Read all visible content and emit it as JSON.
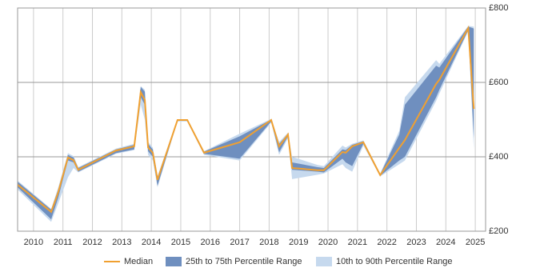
{
  "chart_data": {
    "type": "line",
    "x": [
      2009.46,
      2010.6,
      2010.84,
      2011.17,
      2011.36,
      2011.52,
      2012.8,
      2013.42,
      2013.64,
      2013.78,
      2013.89,
      2014.05,
      2014.21,
      2014.89,
      2015.22,
      2015.79,
      2017.0,
      2018.07,
      2018.34,
      2018.64,
      2018.78,
      2019.65,
      2019.86,
      2020.49,
      2020.6,
      2020.82,
      2021.2,
      2021.77,
      2022.42,
      2022.61,
      2023.67,
      2023.78,
      2024.76,
      2024.95
    ],
    "bands": [
      {
        "name": "10th to 90th Percentile Range",
        "color": "#c6d9ee",
        "lower": [
          312,
          225,
          275,
          345,
          370,
          358,
          408,
          418,
          540,
          500,
          405,
          390,
          318,
          495,
          495,
          405,
          390,
          492,
          405,
          450,
          340,
          352,
          355,
          380,
          370,
          360,
          430,
          347,
          380,
          390,
          550,
          570,
          738,
          420
        ],
        "upper": [
          336,
          260,
          318,
          410,
          402,
          372,
          422,
          435,
          590,
          580,
          440,
          425,
          348,
          501,
          501,
          415,
          462,
          502,
          440,
          465,
          400,
          378,
          375,
          430,
          425,
          435,
          444,
          355,
          470,
          560,
          660,
          650,
          752,
          750
        ]
      },
      {
        "name": "25th to 75th Percentile Range",
        "color": "#6f8fbf",
        "lower": [
          318,
          232,
          290,
          390,
          385,
          360,
          410,
          420,
          560,
          540,
          415,
          400,
          322,
          497,
          497,
          408,
          395,
          495,
          412,
          455,
          365,
          360,
          358,
          395,
          385,
          375,
          435,
          349,
          390,
          400,
          560,
          580,
          740,
          450
        ],
        "upper": [
          333,
          258,
          312,
          405,
          398,
          370,
          420,
          432,
          588,
          575,
          435,
          420,
          345,
          500,
          500,
          414,
          455,
          500,
          435,
          462,
          385,
          372,
          370,
          420,
          418,
          432,
          442,
          353,
          460,
          540,
          645,
          640,
          750,
          745
        ]
      }
    ],
    "series": [
      {
        "name": "Median",
        "color": "#f0a030",
        "values": [
          325,
          252,
          305,
          398,
          391,
          365,
          417,
          428,
          574,
          553,
          425,
          411,
          338,
          499,
          499,
          411,
          439,
          499,
          428,
          460,
          370,
          364,
          364,
          413,
          411,
          428,
          439,
          351,
          424,
          445,
          596,
          607,
          746,
          529
        ]
      }
    ],
    "xlim": [
      2009.46,
      2025.35
    ],
    "xticks": [
      2010,
      2011,
      2012,
      2013,
      2014,
      2015,
      2016,
      2017,
      2018,
      2019,
      2020,
      2021,
      2022,
      2023,
      2024,
      2025
    ],
    "ylim": [
      200,
      800
    ],
    "yticks": [
      {
        "value": 200,
        "label": "£200"
      },
      {
        "value": 400,
        "label": "£400"
      },
      {
        "value": 600,
        "label": "£600"
      },
      {
        "value": 800,
        "label": "£800"
      }
    ],
    "grid": true
  }
}
